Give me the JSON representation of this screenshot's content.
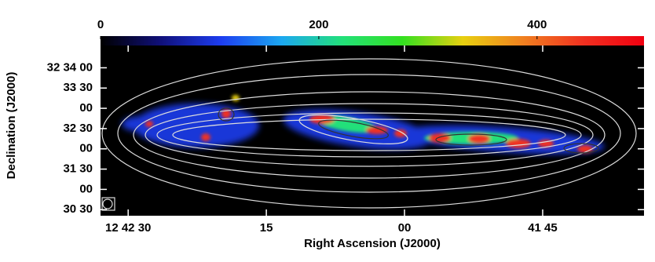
{
  "chart_data": {
    "type": "image",
    "xlabel": "Right Ascension (J2000)",
    "ylabel": "Declination (J2000)",
    "xlim": [
      93,
      34
    ],
    "xticks": [
      {
        "value": 90,
        "label": "12 42 30"
      },
      {
        "value": 75,
        "label": "15"
      },
      {
        "value": 60,
        "label": "00"
      },
      {
        "value": 45,
        "label": "41 45"
      }
    ],
    "ylim": [
      21,
      273
    ],
    "yticks": [
      {
        "value": 240,
        "label": "32 34 00"
      },
      {
        "value": 210,
        "label": "33 30"
      },
      {
        "value": 180,
        "label": "00"
      },
      {
        "value": 150,
        "label": "32 30"
      },
      {
        "value": 120,
        "label": "00"
      },
      {
        "value": 90,
        "label": "31 30"
      },
      {
        "value": 60,
        "label": "00"
      },
      {
        "value": 30,
        "label": "30 30"
      }
    ],
    "clim": [
      0,
      498
    ],
    "cticks": [
      0,
      200,
      400
    ],
    "colormap": [
      "#000000",
      "#10107a",
      "#1d3df0",
      "#1ca8f0",
      "#22e07a",
      "#33e020",
      "#e8d010",
      "#f08020",
      "#f03020",
      "#f00010"
    ]
  }
}
